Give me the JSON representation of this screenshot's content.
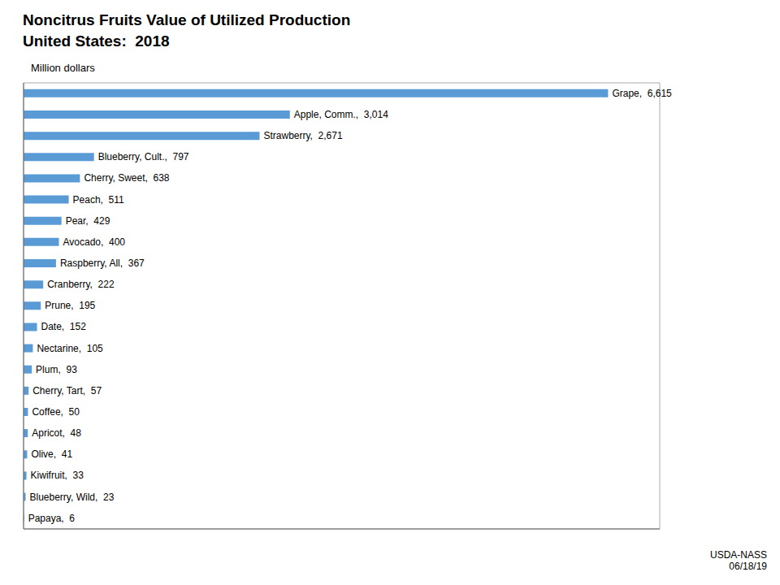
{
  "chart_data": {
    "type": "bar",
    "orientation": "horizontal",
    "title": "Noncitrus Fruits Value of Utilized Production",
    "subtitle": "United States:  2018",
    "xlabel": "Million dollars",
    "annotations": [
      "USDA-NASS\n06/18/19"
    ],
    "categories": [
      "Grape",
      "Apple, Comm.",
      "Strawberry",
      "Blueberry, Cult.",
      "Cherry, Sweet",
      "Peach",
      "Pear",
      "Avocado",
      "Raspberry, All",
      "Cranberry",
      "Prune",
      "Date",
      "Nectarine",
      "Plum",
      "Cherry, Tart",
      "Coffee",
      "Apricot",
      "Olive",
      "Kiwifruit",
      "Blueberry, Wild",
      "Papaya"
    ],
    "values": [
      6615,
      3014,
      2671,
      797,
      638,
      511,
      429,
      400,
      367,
      222,
      195,
      152,
      105,
      93,
      57,
      50,
      48,
      41,
      33,
      23,
      6
    ],
    "value_labels": [
      "Grape,  6,615",
      "Apple, Comm.,  3,014",
      "Strawberry,  2,671",
      "Blueberry, Cult.,  797",
      "Cherry, Sweet,  638",
      "Peach,  511",
      "Pear,  429",
      "Avocado,  400",
      "Raspberry, All,  367",
      "Cranberry,  222",
      "Prune,  195",
      "Date,  152",
      "Nectarine,  105",
      "Plum,  93",
      "Cherry, Tart,  57",
      "Coffee,  50",
      "Apricot,  48",
      "Olive,  41",
      "Kiwifruit,  33",
      "Blueberry, Wild,  23",
      "Papaya,  6"
    ],
    "data_labels": true,
    "color": "#5b9bd5",
    "xlim": [
      0,
      7200
    ],
    "tick_labels": false,
    "grid": false
  }
}
